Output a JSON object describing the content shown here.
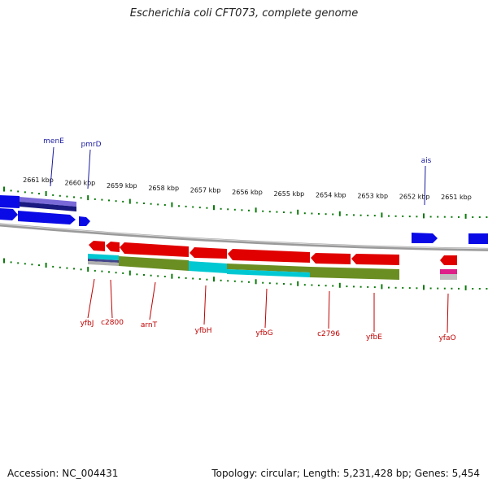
{
  "title": "Escherichia coli CFT073, complete genome",
  "footer": {
    "accession": "Accession: NC_004431",
    "summary": "Topology: circular; Length: 5,231,428 bp; Genes: 5,454"
  },
  "colors": {
    "forward_gene": "#0a0ae6",
    "reverse_gene": "#e00000",
    "backbone": "#8a8a8a",
    "ticks": "#0b7a0b",
    "cog_olive": "#6b8e23",
    "cog_cyan": "#00c8d2",
    "cog_navy": "#1a1a80",
    "cog_purple": "#7a6ad8",
    "cog_pink": "#e0208a",
    "label_forward": "#1a1aa0",
    "label_reverse": "#c00000"
  },
  "scale": {
    "unit": "kbp",
    "ticks_kbp": [
      2661,
      2660,
      2659,
      2658,
      2657,
      2656,
      2655,
      2654,
      2653,
      2652,
      2651
    ]
  },
  "genes_forward": [
    {
      "name": "menE"
    },
    {
      "name": "pmrD"
    },
    {
      "name": "ais"
    }
  ],
  "genes_reverse": [
    {
      "name": "yfbJ"
    },
    {
      "name": "c2800"
    },
    {
      "name": "arnT"
    },
    {
      "name": "yfbH"
    },
    {
      "name": "yfbG"
    },
    {
      "name": "c2796"
    },
    {
      "name": "yfbE"
    },
    {
      "name": "yfaO"
    }
  ]
}
